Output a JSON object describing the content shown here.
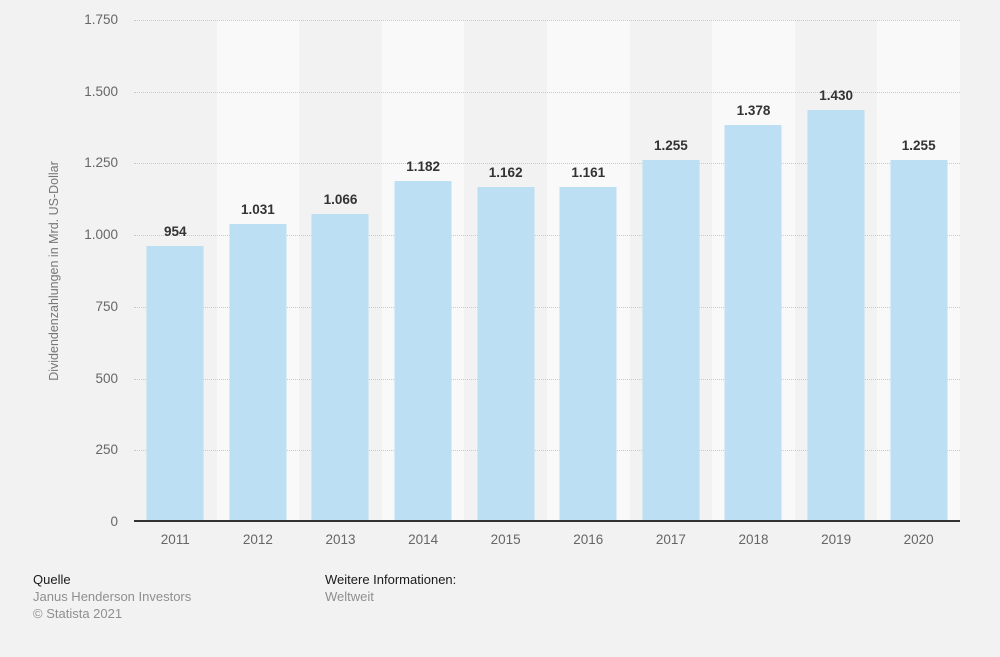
{
  "chart": {
    "y_axis_title": "Dividendenzahlungen in Mrd. US-Dollar"
  },
  "chart_data": {
    "type": "bar",
    "title": "",
    "xlabel": "",
    "ylabel": "Dividendenzahlungen in Mrd. US-Dollar",
    "categories": [
      "2011",
      "2012",
      "2013",
      "2014",
      "2015",
      "2016",
      "2017",
      "2018",
      "2019",
      "2020"
    ],
    "values": [
      954,
      1031,
      1066,
      1182,
      1162,
      1161,
      1255,
      1378,
      1430,
      1255
    ],
    "value_labels": [
      "954",
      "1.031",
      "1.066",
      "1.182",
      "1.162",
      "1.161",
      "1.255",
      "1.378",
      "1.430",
      "1.255"
    ],
    "ylim": [
      0,
      1750
    ],
    "y_tick_values": [
      0,
      250,
      500,
      750,
      1000,
      1250,
      1500,
      1750
    ],
    "y_tick_labels": [
      "0",
      "250",
      "500",
      "750",
      "1.000",
      "1.250",
      "1.500",
      "1.750"
    ],
    "grid": "horizontal-dotted",
    "legend": "none",
    "colors": {
      "bar": "#bddff3",
      "background": "#f2f2f2",
      "column_stripe": "#f9f9f9",
      "gridline": "#c9c9c9",
      "axis_line": "#333333",
      "value_label": "#333333",
      "tick_label": "#666666"
    }
  },
  "footer": {
    "source_heading": "Quelle",
    "source_name": "Janus Henderson Investors",
    "copyright": "© Statista 2021",
    "info_heading": "Weitere Informationen:",
    "info_value": "Weltweit"
  }
}
